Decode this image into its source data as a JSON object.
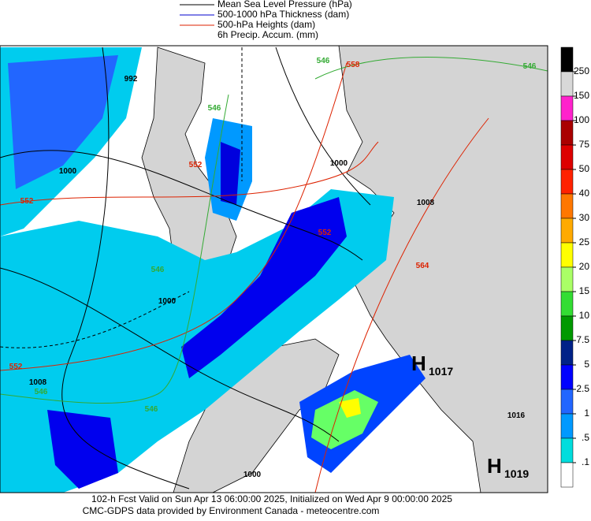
{
  "legend": {
    "entries": [
      {
        "label": "Mean Sea Level Pressure (hPa)",
        "color": "#000000"
      },
      {
        "label": "500-1000 hPa Thickness (dam)",
        "color": "#0000cc"
      },
      {
        "label": "500-hPa Heights (dam)",
        "color": "#dd2200"
      },
      {
        "label": "6h Precip. Accum. (mm)"
      }
    ]
  },
  "colorbar": {
    "levels": [
      250,
      150,
      100,
      75,
      50,
      40,
      30,
      25,
      20,
      15,
      10,
      7.5,
      5,
      2.5,
      1,
      {
        "value": 0.5,
        "label": ".5"
      },
      {
        "value": 0.1,
        "label": ".1"
      }
    ],
    "colors": [
      "#000000",
      "#d8d8d8",
      "#ff22cc",
      "#aa0000",
      "#dd0000",
      "#ff2200",
      "#ff7700",
      "#ffaa00",
      "#ffff00",
      "#aaff66",
      "#33dd33",
      "#009900",
      "#002288",
      "#0000ff",
      "#2266ff",
      "#0099ff",
      "#00dddd",
      "#ffffff"
    ]
  },
  "contour_labels": {
    "pressure": [
      992,
      1000,
      1000,
      1008,
      1000,
      1008,
      1016,
      1000
    ],
    "thickness": [
      546,
      546,
      546,
      546,
      546,
      546
    ],
    "heights": [
      552,
      552,
      552,
      552,
      558,
      564
    ]
  },
  "highs": [
    {
      "letter": "H",
      "pressure": 1017
    },
    {
      "letter": "H",
      "pressure": 1019
    }
  ],
  "footer": [
    "102-h Fcst Valid on Sun Apr 13 06:00:00 2025, Initialized on Wed Apr  9 00:00:00 2025",
    "CMC-GDPS data provided by Environment Canada - meteocentre.com"
  ]
}
